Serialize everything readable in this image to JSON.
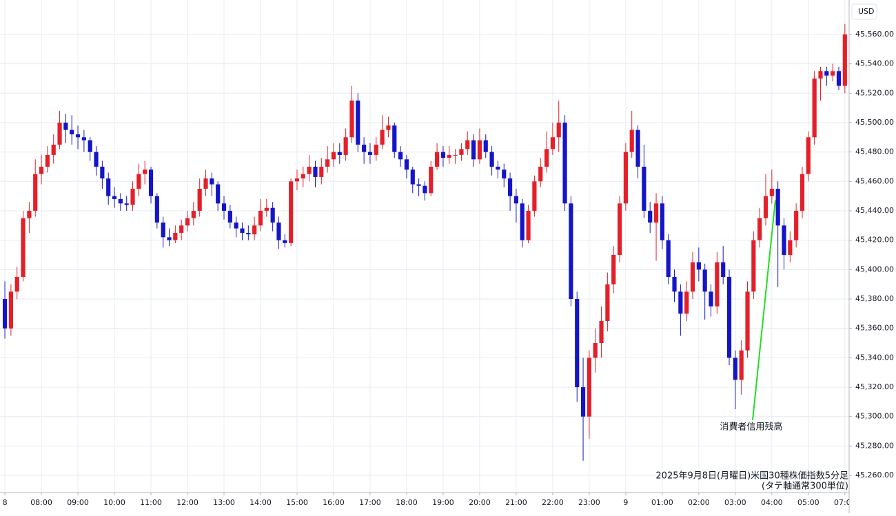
{
  "chart_data": {
    "type": "candlestick",
    "title": "2025年9月8日(月曜日)米国30種株価指数5分足",
    "subtitle": "(タテ軸通常300単位)",
    "currency": "USD",
    "annotation": "消費者信用残高",
    "up_color": "#e3202a",
    "down_color": "#1515c8",
    "grid": true,
    "ylim": [
      45248.3,
      45583.4
    ],
    "yticks": [
      {
        "value": 45260,
        "label": "45,260.00"
      },
      {
        "value": 45280,
        "label": "45,280.00"
      },
      {
        "value": 45300,
        "label": "45,300.00"
      },
      {
        "value": 45320,
        "label": "45,320.00"
      },
      {
        "value": 45340,
        "label": "45,340.00"
      },
      {
        "value": 45360,
        "label": "45,360.00"
      },
      {
        "value": 45380,
        "label": "45,380.00"
      },
      {
        "value": 45400,
        "label": "45,400.00"
      },
      {
        "value": 45420,
        "label": "45,420.00"
      },
      {
        "value": 45440,
        "label": "45,440.00"
      },
      {
        "value": 45460,
        "label": "45,460.00"
      },
      {
        "value": 45480,
        "label": "45,480.00"
      },
      {
        "value": 45500,
        "label": "45,500.00"
      },
      {
        "value": 45520,
        "label": "45,520.00"
      },
      {
        "value": 45540,
        "label": "45,540.00"
      },
      {
        "value": 45560,
        "label": "45,560.00"
      }
    ],
    "xlim": [
      -0.8,
      138.7
    ],
    "xticks": [
      {
        "value": 0,
        "label": "8"
      },
      {
        "value": 6,
        "label": "08:00"
      },
      {
        "value": 12,
        "label": "09:00"
      },
      {
        "value": 18,
        "label": "10:00"
      },
      {
        "value": 24,
        "label": "11:00"
      },
      {
        "value": 30,
        "label": "12:00"
      },
      {
        "value": 36,
        "label": "13:00"
      },
      {
        "value": 42,
        "label": "14:00"
      },
      {
        "value": 48,
        "label": "15:00"
      },
      {
        "value": 54,
        "label": "16:00"
      },
      {
        "value": 60,
        "label": "17:00"
      },
      {
        "value": 66,
        "label": "18:00"
      },
      {
        "value": 72,
        "label": "19:00"
      },
      {
        "value": 78,
        "label": "20:00"
      },
      {
        "value": 84,
        "label": "21:00"
      },
      {
        "value": 90,
        "label": "22:00"
      },
      {
        "value": 96,
        "label": "23:00"
      },
      {
        "value": 102,
        "label": "9"
      },
      {
        "value": 108,
        "label": "01:00"
      },
      {
        "value": 114,
        "label": "02:00"
      },
      {
        "value": 120,
        "label": "03:00"
      },
      {
        "value": 126,
        "label": "04:00"
      },
      {
        "value": 132,
        "label": "05:00"
      },
      {
        "value": 138,
        "label": "07:00"
      }
    ],
    "candles": [
      [
        45380,
        45392,
        45353,
        45360
      ],
      [
        45360,
        45390,
        45355,
        45385
      ],
      [
        45385,
        45402,
        45380,
        45395
      ],
      [
        45395,
        45440,
        45392,
        45435
      ],
      [
        45435,
        45446,
        45425,
        45440
      ],
      [
        45440,
        45475,
        45436,
        45465
      ],
      [
        45465,
        45478,
        45458,
        45470
      ],
      [
        45470,
        45484,
        45466,
        45478
      ],
      [
        45478,
        45492,
        45472,
        45485
      ],
      [
        45485,
        45508,
        45482,
        45500
      ],
      [
        45500,
        45506,
        45486,
        45495
      ],
      [
        45495,
        45505,
        45485,
        45492
      ],
      [
        45492,
        45498,
        45482,
        45490
      ],
      [
        45490,
        45495,
        45480,
        45488
      ],
      [
        45488,
        45490,
        45474,
        45480
      ],
      [
        45480,
        45484,
        45464,
        45470
      ],
      [
        45470,
        45474,
        45455,
        45462
      ],
      [
        45462,
        45466,
        45444,
        45450
      ],
      [
        45450,
        45456,
        45442,
        45448
      ],
      [
        45448,
        45452,
        45440,
        45445
      ],
      [
        45445,
        45450,
        45440,
        45444
      ],
      [
        45444,
        45460,
        45440,
        45455
      ],
      [
        45455,
        45472,
        45450,
        45465
      ],
      [
        45465,
        45474,
        45458,
        45468
      ],
      [
        45468,
        45470,
        45445,
        45450
      ],
      [
        45450,
        45452,
        45428,
        45432
      ],
      [
        45432,
        45436,
        45415,
        45422
      ],
      [
        45422,
        45428,
        45416,
        45420
      ],
      [
        45420,
        45430,
        45418,
        45425
      ],
      [
        45425,
        45434,
        45420,
        45430
      ],
      [
        45430,
        45440,
        45426,
        45435
      ],
      [
        45435,
        45446,
        45430,
        45440
      ],
      [
        45440,
        45462,
        45436,
        45455
      ],
      [
        45455,
        45468,
        45450,
        45462
      ],
      [
        45462,
        45466,
        45450,
        45458
      ],
      [
        45458,
        45460,
        45440,
        45445
      ],
      [
        45445,
        45450,
        45434,
        45440
      ],
      [
        45440,
        45444,
        45428,
        45432
      ],
      [
        45432,
        45436,
        45422,
        45428
      ],
      [
        45428,
        45432,
        45420,
        45425
      ],
      [
        45425,
        45430,
        45420,
        45424
      ],
      [
        45424,
        45436,
        45420,
        45430
      ],
      [
        45430,
        45448,
        45426,
        45440
      ],
      [
        45440,
        45448,
        45436,
        45442
      ],
      [
        45442,
        45446,
        45426,
        45432
      ],
      [
        45432,
        45436,
        45414,
        45420
      ],
      [
        45420,
        45424,
        45415,
        45418
      ],
      [
        45418,
        45462,
        45416,
        45460
      ],
      [
        45460,
        45468,
        45454,
        45462
      ],
      [
        45462,
        45470,
        45456,
        45465
      ],
      [
        45465,
        45478,
        45460,
        45470
      ],
      [
        45470,
        45474,
        45456,
        45463
      ],
      [
        45463,
        45476,
        45458,
        45470
      ],
      [
        45470,
        45484,
        45466,
        45475
      ],
      [
        45475,
        45486,
        45470,
        45480
      ],
      [
        45480,
        45486,
        45472,
        45478
      ],
      [
        45478,
        45496,
        45474,
        45490
      ],
      [
        45490,
        45525,
        45486,
        45515
      ],
      [
        45515,
        45520,
        45480,
        45485
      ],
      [
        45485,
        45490,
        45472,
        45480
      ],
      [
        45480,
        45486,
        45472,
        45478
      ],
      [
        45478,
        45490,
        45474,
        45485
      ],
      [
        45485,
        45505,
        45482,
        45495
      ],
      [
        45495,
        45504,
        45490,
        45498
      ],
      [
        45498,
        45500,
        45476,
        45480
      ],
      [
        45480,
        45484,
        45470,
        45475
      ],
      [
        45475,
        45478,
        45462,
        45468
      ],
      [
        45468,
        45470,
        45452,
        45458
      ],
      [
        45458,
        45462,
        45450,
        45457
      ],
      [
        45457,
        45460,
        45447,
        45452
      ],
      [
        45452,
        45474,
        45450,
        45470
      ],
      [
        45470,
        45486,
        45468,
        45480
      ],
      [
        45480,
        45484,
        45470,
        45476
      ],
      [
        45476,
        45484,
        45472,
        45478
      ],
      [
        45478,
        45482,
        45472,
        45478
      ],
      [
        45478,
        45486,
        45474,
        45482
      ],
      [
        45482,
        45494,
        45478,
        45488
      ],
      [
        45488,
        45492,
        45470,
        45475
      ],
      [
        45475,
        45496,
        45472,
        45488
      ],
      [
        45488,
        45492,
        45476,
        45480
      ],
      [
        45480,
        45484,
        45464,
        45470
      ],
      [
        45470,
        45474,
        45462,
        45468
      ],
      [
        45468,
        45472,
        45456,
        45462
      ],
      [
        45462,
        45466,
        45440,
        45450
      ],
      [
        45450,
        45455,
        45432,
        45445
      ],
      [
        45445,
        45448,
        45415,
        45420
      ],
      [
        45420,
        45444,
        45418,
        45440
      ],
      [
        45440,
        45464,
        45436,
        45460
      ],
      [
        45460,
        45476,
        45456,
        45470
      ],
      [
        45470,
        45494,
        45466,
        45482
      ],
      [
        45482,
        45500,
        45478,
        45490
      ],
      [
        45490,
        45515,
        45480,
        45500
      ],
      [
        45500,
        45505,
        45440,
        45445
      ],
      [
        45445,
        45450,
        45375,
        45380
      ],
      [
        45380,
        45385,
        45310,
        45320
      ],
      [
        45320,
        45340,
        45270,
        45300
      ],
      [
        45300,
        45345,
        45285,
        45340
      ],
      [
        45340,
        45360,
        45330,
        45350
      ],
      [
        45350,
        45375,
        45340,
        45365
      ],
      [
        45365,
        45398,
        45358,
        45390
      ],
      [
        45390,
        45416,
        45384,
        45410
      ],
      [
        45410,
        45450,
        45405,
        45445
      ],
      [
        45445,
        45486,
        45440,
        45480
      ],
      [
        45480,
        45508,
        45476,
        45495
      ],
      [
        45495,
        45498,
        45462,
        45470
      ],
      [
        45470,
        45485,
        45435,
        45440
      ],
      [
        45440,
        45446,
        45425,
        45432
      ],
      [
        45432,
        45452,
        45406,
        45445
      ],
      [
        45445,
        45450,
        45414,
        45420
      ],
      [
        45420,
        45424,
        45390,
        45395
      ],
      [
        45395,
        45400,
        45378,
        45385
      ],
      [
        45385,
        45390,
        45355,
        45370
      ],
      [
        45370,
        45392,
        45365,
        45385
      ],
      [
        45385,
        45412,
        45380,
        45405
      ],
      [
        45405,
        45415,
        45392,
        45400
      ],
      [
        45400,
        45404,
        45366,
        45385
      ],
      [
        45385,
        45390,
        45368,
        45375
      ],
      [
        45375,
        45412,
        45370,
        45405
      ],
      [
        45405,
        45416,
        45390,
        45395
      ],
      [
        45395,
        45400,
        45335,
        45340
      ],
      [
        45340,
        45345,
        45305,
        45325
      ],
      [
        45325,
        45352,
        45315,
        45345
      ],
      [
        45345,
        45392,
        45340,
        45385
      ],
      [
        45385,
        45426,
        45380,
        45420
      ],
      [
        45420,
        45442,
        45415,
        45435
      ],
      [
        45435,
        45465,
        45430,
        45450
      ],
      [
        45450,
        45468,
        45445,
        45455
      ],
      [
        45455,
        45460,
        45388,
        45430
      ],
      [
        45430,
        45435,
        45400,
        45410
      ],
      [
        45410,
        45426,
        45405,
        45420
      ],
      [
        45420,
        45445,
        45415,
        45440
      ],
      [
        45440,
        45470,
        45435,
        45465
      ],
      [
        45465,
        45494,
        45460,
        45490
      ],
      [
        45490,
        45535,
        45485,
        45530
      ],
      [
        45530,
        45538,
        45515,
        45535
      ],
      [
        45535,
        45538,
        45525,
        45532
      ],
      [
        45532,
        45540,
        45528,
        45535
      ],
      [
        45535,
        45538,
        45522,
        45525
      ],
      [
        45525,
        45567,
        45520,
        45560
      ]
    ]
  }
}
